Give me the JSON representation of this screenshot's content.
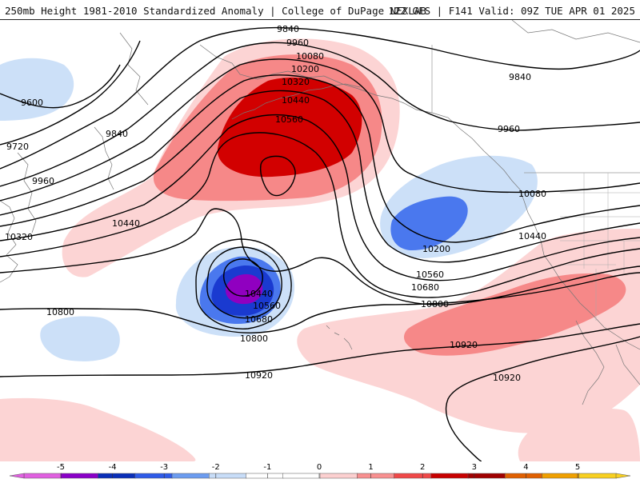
{
  "header": {
    "title_left": "250mb Height 1981-2010 Standardized Anomaly | College of DuPage NEXLAB",
    "title_right": "12Z GFS | F141 Valid: 09Z TUE APR 01 2025"
  },
  "colorbar": {
    "ticks": [
      "-5",
      "-4",
      "-3",
      "-2",
      "-1",
      "0",
      "1",
      "2",
      "3",
      "4",
      "5"
    ],
    "colors": [
      "#e060e0",
      "#8a00c8",
      "#0a2fb8",
      "#2f5be8",
      "#6c9cf0",
      "#c8ddf8",
      "#ffffff",
      "#ffffff",
      "#fcd0d0",
      "#f89090",
      "#f04848",
      "#c80000",
      "#a00000",
      "#e06000",
      "#f0a000",
      "#f8d020"
    ]
  },
  "map": {
    "fill_colors": {
      "pos1": "#fcd4d4",
      "pos2": "#f68888",
      "pos3": "#d20000",
      "neg1": "#cce0f8",
      "neg2": "#4a78ee",
      "neg3": "#1a3ad0",
      "neg4": "#9000c0"
    },
    "contour_labels": [
      {
        "name": "label-9840-north",
        "text": "9840"
      },
      {
        "name": "label-9960-north",
        "text": "9960"
      },
      {
        "name": "label-10080-north",
        "text": "10080"
      },
      {
        "name": "label-10200-north",
        "text": "10200"
      },
      {
        "name": "label-10320-north",
        "text": "10320"
      },
      {
        "name": "label-10440-north",
        "text": "10440"
      },
      {
        "name": "label-10560-north",
        "text": "10560"
      },
      {
        "name": "label-9840-east",
        "text": "9840"
      },
      {
        "name": "label-9960-east",
        "text": "9960"
      },
      {
        "name": "label-9600-west",
        "text": "9600"
      },
      {
        "name": "label-9840-west",
        "text": "9840"
      },
      {
        "name": "label-9720-west",
        "text": "9720"
      },
      {
        "name": "label-9960-west",
        "text": "9960"
      },
      {
        "name": "label-10440-west",
        "text": "10440"
      },
      {
        "name": "label-10320-west",
        "text": "10320"
      },
      {
        "name": "label-10080-east",
        "text": "10080"
      },
      {
        "name": "label-10440-east",
        "text": "10440"
      },
      {
        "name": "label-10200-trough",
        "text": "10200"
      },
      {
        "name": "label-10560-trough",
        "text": "10560"
      },
      {
        "name": "label-10680-trough",
        "text": "10680"
      },
      {
        "name": "label-10800-east",
        "text": "10800"
      },
      {
        "name": "label-10440-low",
        "text": "10440"
      },
      {
        "name": "label-10560-low",
        "text": "10560"
      },
      {
        "name": "label-10680-low",
        "text": "10680"
      },
      {
        "name": "label-10800-west",
        "text": "10800"
      },
      {
        "name": "label-10800-south",
        "text": "10800"
      },
      {
        "name": "label-10920-east",
        "text": "10920"
      },
      {
        "name": "label-10920-south",
        "text": "10920"
      },
      {
        "name": "label-10920-se",
        "text": "10920"
      }
    ]
  }
}
